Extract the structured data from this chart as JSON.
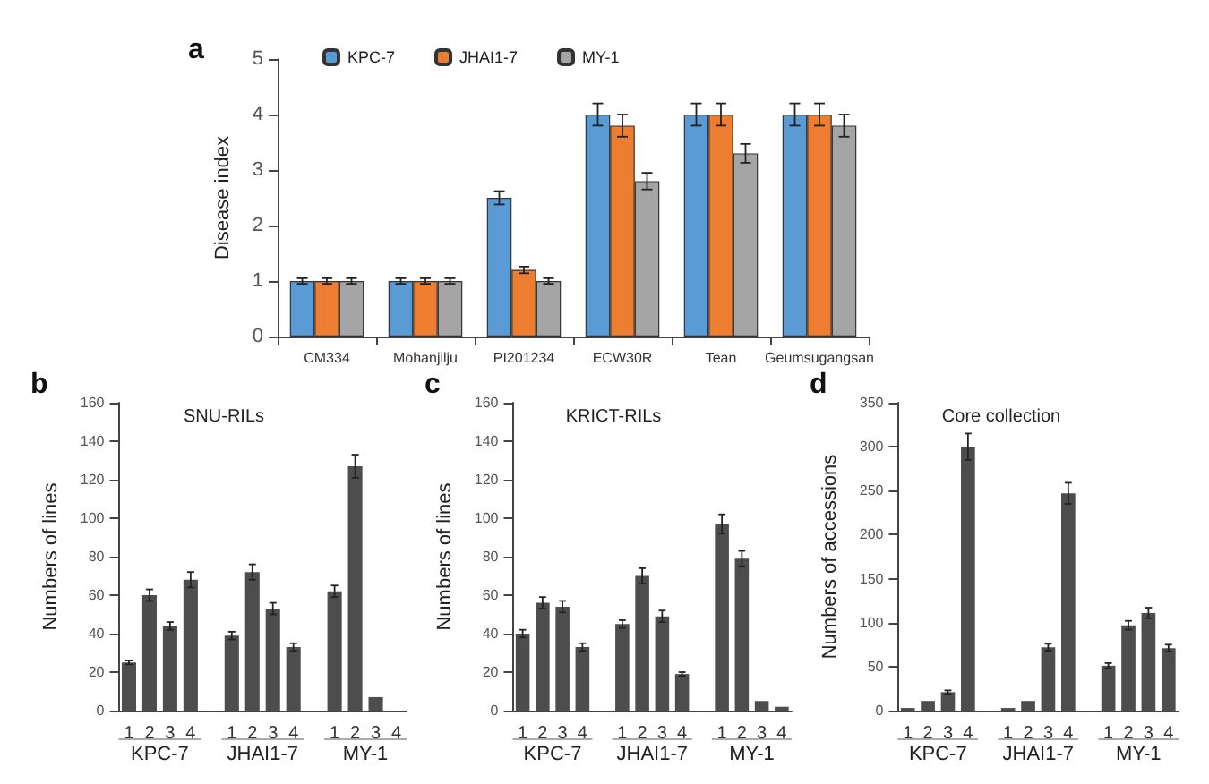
{
  "chart_data": [
    {
      "type": "bar",
      "ylabel": "Disease index",
      "annotations": [
        "a"
      ],
      "categories": [
        "CM334",
        "Mohanjilju",
        "PI201234",
        "ECW30R",
        "Tean",
        "Geumsugangsan"
      ],
      "ylim": [
        0,
        5
      ],
      "yticks": [
        0,
        1,
        2,
        3,
        4,
        5
      ],
      "legend": "top left",
      "grid": false,
      "series": [
        {
          "name": "KPC-7",
          "color": "#5b9bd5",
          "values": [
            1,
            1,
            2.5,
            4,
            4,
            4
          ],
          "errors": [
            0.05,
            0.05,
            0.12,
            0.2,
            0.2,
            0.2
          ]
        },
        {
          "name": "JHAI1-7",
          "color": "#ed7d31",
          "values": [
            1,
            1,
            1.2,
            3.8,
            4,
            4
          ],
          "errors": [
            0.05,
            0.05,
            0.06,
            0.2,
            0.2,
            0.2
          ]
        },
        {
          "name": "MY-1",
          "color": "#a5a5a5",
          "values": [
            1,
            1,
            1,
            2.8,
            3.3,
            3.8
          ],
          "errors": [
            0.05,
            0.05,
            0.05,
            0.15,
            0.17,
            0.2
          ]
        }
      ]
    },
    {
      "type": "bar",
      "title": "SNU-RILs",
      "ylabel": "Numbers of lines",
      "annotations": [
        "b",
        "KPC-7",
        "JHAI1-7",
        "MY-1"
      ],
      "categories": [
        "1",
        "2",
        "3",
        "4",
        null,
        "1",
        "2",
        "3",
        "4",
        null,
        "1",
        "2",
        "3",
        "4"
      ],
      "ylim": [
        0,
        160
      ],
      "yticks": [
        0,
        20,
        40,
        60,
        80,
        100,
        120,
        140,
        160
      ],
      "grid": false,
      "color": "#4d4d4d",
      "values": [
        25,
        60,
        44,
        68,
        null,
        39,
        72,
        53,
        33,
        null,
        62,
        127,
        7,
        0
      ],
      "errors": [
        1,
        3,
        2,
        4,
        null,
        2,
        4,
        3,
        2,
        null,
        3,
        6,
        null,
        null
      ]
    },
    {
      "type": "bar",
      "title": "KRICT-RILs",
      "ylabel": "Numbers of lines",
      "annotations": [
        "c",
        "KPC-7",
        "JHAI1-7",
        "MY-1"
      ],
      "categories": [
        "1",
        "2",
        "3",
        "4",
        null,
        "1",
        "2",
        "3",
        "4",
        null,
        "1",
        "2",
        "3",
        "4"
      ],
      "ylim": [
        0,
        160
      ],
      "yticks": [
        0,
        20,
        40,
        60,
        80,
        100,
        120,
        140,
        160
      ],
      "grid": false,
      "color": "#4d4d4d",
      "values": [
        40,
        56,
        54,
        33,
        null,
        45,
        70,
        49,
        19,
        null,
        97,
        79,
        5,
        2
      ],
      "errors": [
        2,
        3,
        3,
        2,
        null,
        2,
        4,
        3,
        1,
        null,
        5,
        4,
        null,
        null
      ]
    },
    {
      "type": "bar",
      "title": "Core collection",
      "ylabel": "Numbers of accessions",
      "annotations": [
        "d",
        "KPC-7",
        "JHAI1-7",
        "MY-1"
      ],
      "categories": [
        "1",
        "2",
        "3",
        "4",
        null,
        "1",
        "2",
        "3",
        "4",
        null,
        "1",
        "2",
        "3",
        "4"
      ],
      "ylim": [
        0,
        350
      ],
      "yticks": [
        0,
        50,
        100,
        150,
        200,
        250,
        300,
        350
      ],
      "grid": false,
      "color": "#4d4d4d",
      "values": [
        3,
        11,
        21,
        300,
        null,
        3,
        11,
        72,
        247,
        null,
        51,
        97,
        111,
        71
      ],
      "errors": [
        null,
        null,
        2,
        15,
        null,
        null,
        null,
        4,
        12,
        null,
        3,
        5,
        6,
        4
      ]
    }
  ]
}
